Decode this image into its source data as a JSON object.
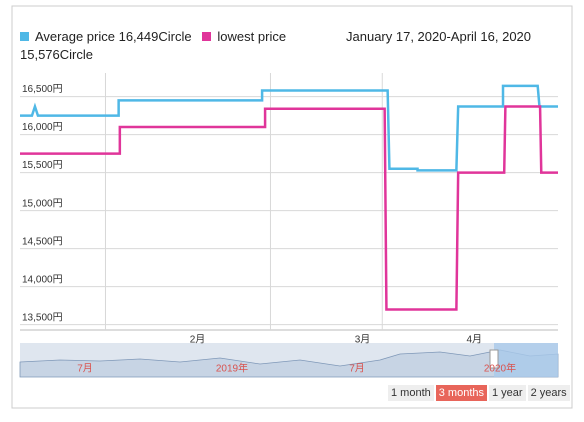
{
  "chart_data": {
    "type": "line",
    "date_range": "January 17, 2020-April 16, 2020",
    "series": [
      {
        "name": "Average price 16,449Circle",
        "color": "#4fb8e6",
        "x": [
          0,
          2,
          2.5,
          3,
          16.5,
          16.5,
          40.5,
          40.5,
          61.5,
          61.8,
          66.5,
          66.5,
          73,
          73.3,
          80.8,
          80.8,
          86.6,
          86.9,
          90
        ],
        "values": [
          16250,
          16250,
          16370,
          16250,
          16250,
          16450,
          16450,
          16580,
          16580,
          15550,
          15550,
          15530,
          15530,
          16370,
          16370,
          16640,
          16640,
          16370,
          16370
        ]
      },
      {
        "name": "lowest price 15,576Circle",
        "color": "#e0359a",
        "x": [
          0,
          16.7,
          16.7,
          41,
          41,
          61,
          61.3,
          73,
          73.3,
          81,
          81.2,
          87,
          87.2,
          90
        ],
        "values": [
          15750,
          15750,
          16100,
          16100,
          16340,
          16340,
          13700,
          13700,
          15500,
          15500,
          16370,
          16370,
          15500,
          15500
        ]
      }
    ],
    "xlim": [
      0,
      90
    ],
    "xticks": [
      {
        "value": 14.3,
        "label": "2月"
      },
      {
        "value": 41.9,
        "label": "3月"
      },
      {
        "value": 60.6,
        "label": "4月"
      }
    ],
    "ylim": [
      13430,
      16810
    ],
    "yticks": [
      {
        "value": 13500,
        "label": "13,500円"
      },
      {
        "value": 14000,
        "label": "14,000円"
      },
      {
        "value": 14500,
        "label": "14,500円"
      },
      {
        "value": 15000,
        "label": "15,000円"
      },
      {
        "value": 15500,
        "label": "15,500円"
      },
      {
        "value": 16000,
        "label": "16,000円"
      },
      {
        "value": 16500,
        "label": "16,500円"
      }
    ],
    "grid": true,
    "navigator_labels": [
      "7月",
      "2019年",
      "7月",
      "2020年"
    ],
    "range_buttons": {
      "labels": [
        "1 month",
        "3 months",
        "1 year",
        "2 years"
      ],
      "selected": 1
    }
  }
}
